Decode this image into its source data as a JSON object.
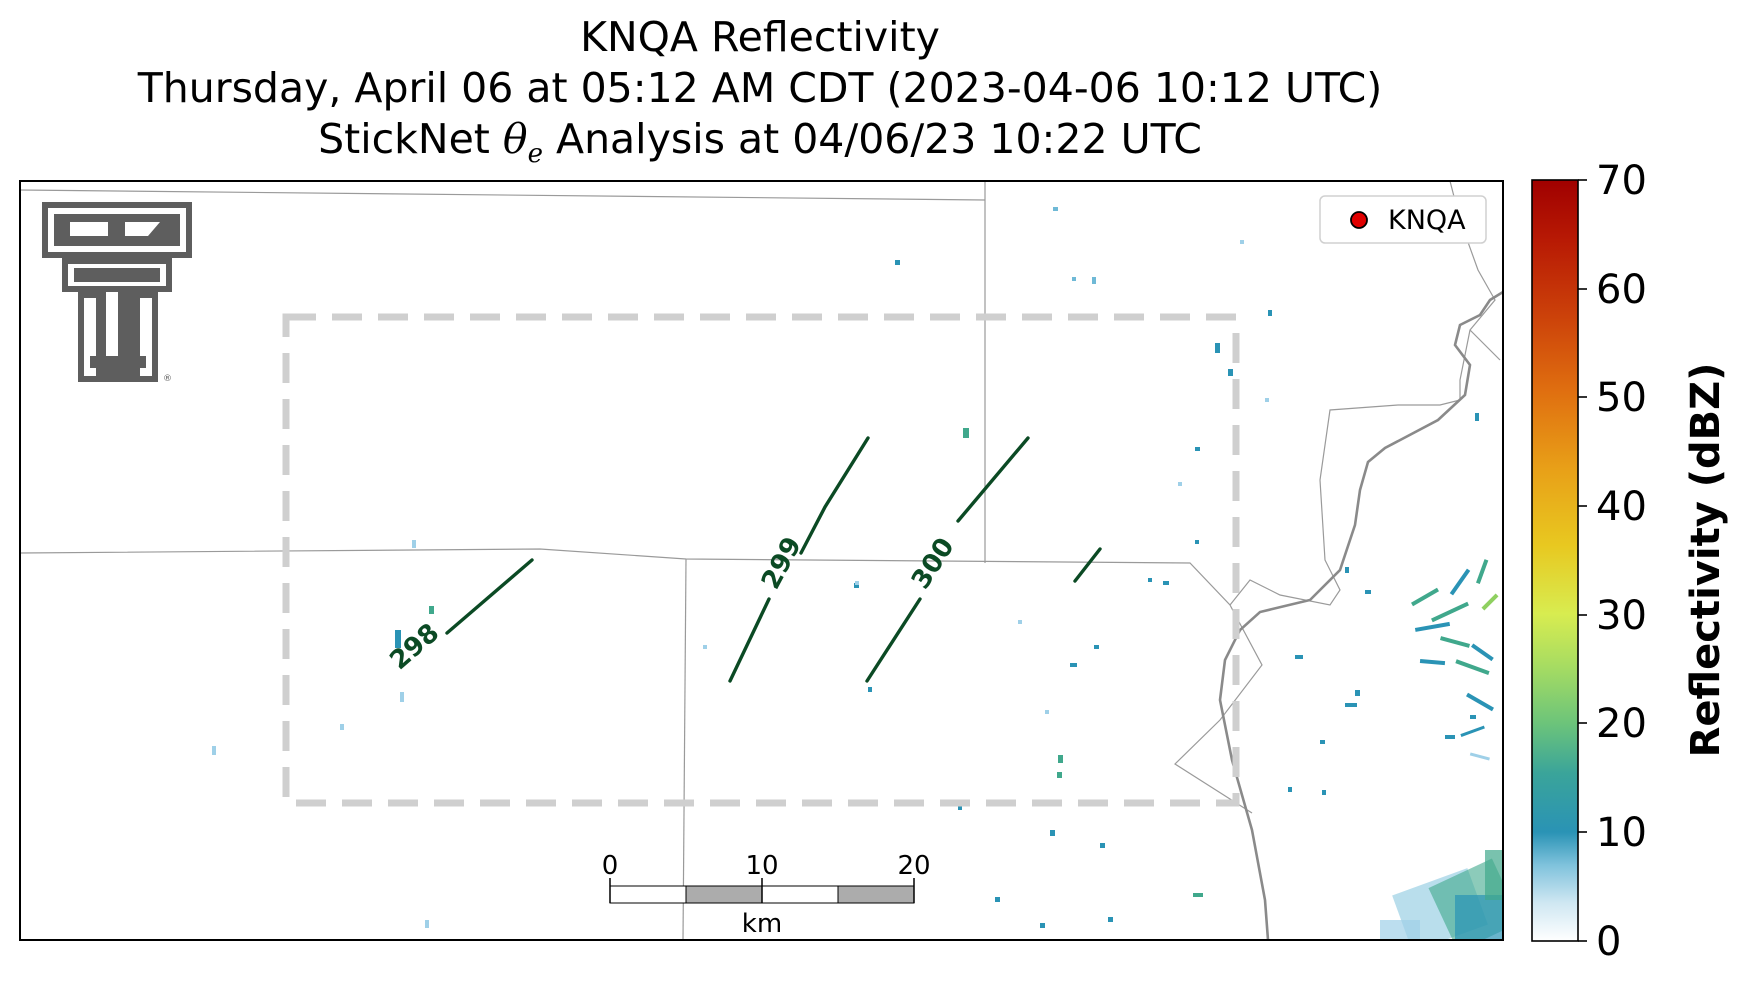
{
  "title": {
    "line1": "KNQA Reflectivity",
    "line2": "Thursday, April 06 at 05:12 AM CDT (2023-04-06 10:12 UTC)",
    "line3_prefix": "StickNet ",
    "line3_symbol": "θ",
    "line3_subscript": "e",
    "line3_suffix": " Analysis at 04/06/23 10:22 UTC"
  },
  "legend": {
    "label": "KNQA",
    "marker_color": "#e00000"
  },
  "logo": {
    "name": "texas-tech-double-t-logo",
    "mark": "®"
  },
  "contours": [
    {
      "label": "298"
    },
    {
      "label": "299"
    },
    {
      "label": "300"
    }
  ],
  "scale_bar": {
    "ticks": [
      "0",
      "10",
      "20"
    ],
    "unit": "km"
  },
  "colorbar": {
    "title": "Reflectivity (dBZ)",
    "ticks": [
      "0",
      "10",
      "20",
      "30",
      "40",
      "50",
      "60",
      "70"
    ],
    "range": [
      0,
      70
    ],
    "colors": [
      "#ffffff",
      "#9fd0e8",
      "#2a93b5",
      "#40a88c",
      "#8fd060",
      "#d8ec50",
      "#e8c020",
      "#e27a10",
      "#c83a0a",
      "#a00000"
    ]
  },
  "colors": {
    "contour": "#0b4a24",
    "analysis_box": "#cfcfcf",
    "borders": "#9a9a9a",
    "river": "#8a8a8a"
  }
}
